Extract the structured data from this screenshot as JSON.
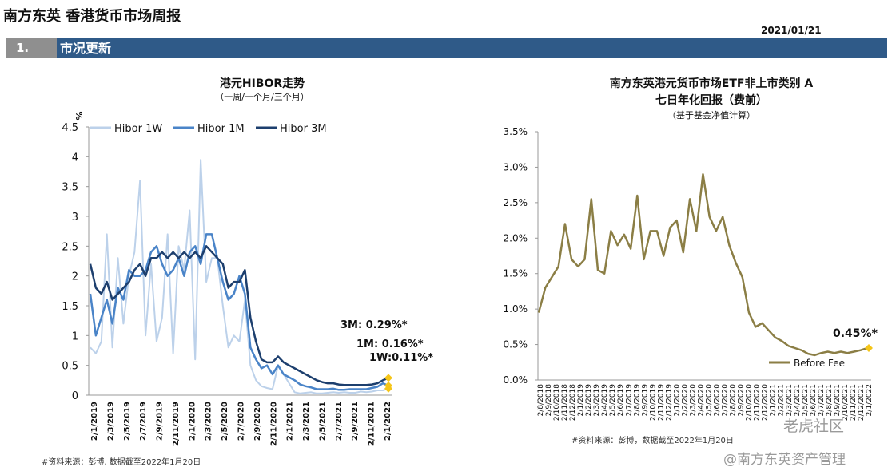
{
  "header": {
    "title": "南方东英 香港货币市场周报",
    "date": "2021/01/21",
    "section_number": "1.",
    "section_title": "市况更新"
  },
  "left_source": "#资料来源：彭博, 数据截至2022年1月20日",
  "right_source": "#资料来源：彭博，数据截至2022年1月20日",
  "watermarks": [
    "老虎社区",
    "@南方东英资产管理"
  ],
  "colors": {
    "hibor_1w": "#bcd1ea",
    "hibor_1m": "#4a84c8",
    "hibor_3m": "#1d3f6e",
    "etf": "#8b7e45",
    "marker": "#f5c518",
    "section_bar": "#2f5a88"
  },
  "chart_data": [
    {
      "type": "line",
      "title": "港元HIBOR走势",
      "subtitle": "（一周/一个月/三个月）",
      "ylabel": "%",
      "ylim": [
        0,
        4.5
      ],
      "yticks": [
        "0",
        "0.5",
        "1",
        "1.5",
        "2",
        "2.5",
        "3",
        "3.5",
        "4",
        "4.5"
      ],
      "xticks": [
        "2/1/2019",
        "2/3/2019",
        "2/5/2019",
        "2/7/2019",
        "2/9/2019",
        "2/11/2019",
        "2/1/2020",
        "2/3/2020",
        "2/5/2020",
        "2/7/2020",
        "2/9/2020",
        "2/11/2020",
        "2/1/2021",
        "2/3/2021",
        "2/5/2021",
        "2/7/2021",
        "2/9/2021",
        "2/11/2021",
        "2/1/2022"
      ],
      "legend": "top",
      "series": [
        {
          "name": "Hibor 1W",
          "values": [
            0.8,
            0.7,
            0.9,
            2.7,
            0.8,
            2.3,
            1.2,
            2.0,
            2.4,
            3.6,
            1.0,
            2.2,
            0.9,
            1.3,
            2.7,
            0.7,
            2.5,
            2.1,
            3.1,
            0.6,
            3.95,
            1.9,
            2.3,
            2.3,
            1.5,
            0.8,
            1.0,
            0.9,
            1.6,
            0.5,
            0.25,
            0.15,
            0.12,
            0.1,
            0.5,
            0.35,
            0.2,
            0.05,
            0.03,
            0.04,
            0.05,
            0.03,
            0.03,
            0.04,
            0.05,
            0.04,
            0.05,
            0.04,
            0.04,
            0.06,
            0.05,
            0.06,
            0.08,
            0.08,
            0.11
          ]
        },
        {
          "name": "Hibor 1M",
          "values": [
            1.7,
            1.0,
            1.3,
            1.6,
            1.2,
            1.8,
            1.6,
            2.1,
            2.0,
            2.0,
            2.1,
            2.4,
            2.5,
            2.2,
            2.0,
            2.1,
            2.3,
            2.0,
            2.4,
            2.5,
            2.2,
            2.7,
            2.7,
            2.3,
            1.9,
            1.6,
            1.7,
            2.0,
            1.7,
            0.8,
            0.6,
            0.45,
            0.5,
            0.35,
            0.5,
            0.35,
            0.3,
            0.25,
            0.18,
            0.15,
            0.13,
            0.1,
            0.1,
            0.1,
            0.11,
            0.09,
            0.09,
            0.1,
            0.1,
            0.1,
            0.1,
            0.12,
            0.14,
            0.2,
            0.16
          ]
        },
        {
          "name": "Hibor 3M",
          "values": [
            2.2,
            1.8,
            1.7,
            1.9,
            1.6,
            1.7,
            1.8,
            1.9,
            2.1,
            2.2,
            2.0,
            2.3,
            2.3,
            2.4,
            2.3,
            2.4,
            2.3,
            2.4,
            2.3,
            2.4,
            2.3,
            2.5,
            2.4,
            2.3,
            2.2,
            1.8,
            1.9,
            1.9,
            2.1,
            1.3,
            0.9,
            0.6,
            0.55,
            0.55,
            0.65,
            0.55,
            0.5,
            0.45,
            0.4,
            0.35,
            0.3,
            0.25,
            0.22,
            0.2,
            0.2,
            0.18,
            0.17,
            0.17,
            0.17,
            0.17,
            0.17,
            0.18,
            0.2,
            0.25,
            0.29
          ]
        }
      ],
      "annotations": [
        "3M: 0.29%*",
        "1M: 0.16%*",
        "1W:0.11%*"
      ]
    },
    {
      "type": "line",
      "title": "南方东英港元货币市场ETF非上市类别 A",
      "title2": "七日年化回报（费前）",
      "subtitle": "（基于基金净值计算）",
      "ylim": [
        0,
        3.5
      ],
      "yticks": [
        "0.0%",
        "0.5%",
        "1.0%",
        "1.5%",
        "2.0%",
        "2.5%",
        "3.0%",
        "3.5%"
      ],
      "xticks": [
        "2/8/2018",
        "2/9/2018",
        "2/10/2018",
        "2/11/2018",
        "2/12/2018",
        "2/1/2019",
        "2/2/2019",
        "2/3/2019",
        "2/4/2019",
        "2/5/2019",
        "2/6/2019",
        "2/7/2019",
        "2/8/2019",
        "2/9/2019",
        "2/10/2019",
        "2/11/2019",
        "2/12/2019",
        "2/1/2020",
        "2/2/2020",
        "2/3/2020",
        "2/4/2020",
        "2/5/2020",
        "2/6/2020",
        "2/7/2020",
        "2/8/2020",
        "2/9/2020",
        "2/10/2020",
        "2/11/2020",
        "2/12/2020",
        "2/1/2021",
        "2/2/2021",
        "2/3/2021",
        "2/4/2021",
        "2/5/2021",
        "2/6/2021",
        "2/7/2021",
        "2/8/2021",
        "2/9/2021",
        "2/10/2021",
        "2/11/2021",
        "2/12/2021",
        "2/1/2022"
      ],
      "legend": "bottom-right",
      "series": [
        {
          "name": "Before Fee",
          "values": [
            0.95,
            1.3,
            1.45,
            1.6,
            2.2,
            1.7,
            1.6,
            1.7,
            2.55,
            1.55,
            1.5,
            2.1,
            1.9,
            2.05,
            1.85,
            2.6,
            1.7,
            2.1,
            2.1,
            1.75,
            2.15,
            2.25,
            1.8,
            2.55,
            2.1,
            2.9,
            2.3,
            2.1,
            2.3,
            1.9,
            1.65,
            1.45,
            0.95,
            0.75,
            0.8,
            0.7,
            0.6,
            0.55,
            0.48,
            0.45,
            0.42,
            0.37,
            0.35,
            0.38,
            0.4,
            0.38,
            0.4,
            0.38,
            0.4,
            0.42,
            0.45
          ]
        }
      ],
      "annotation": "0.45%*"
    }
  ]
}
